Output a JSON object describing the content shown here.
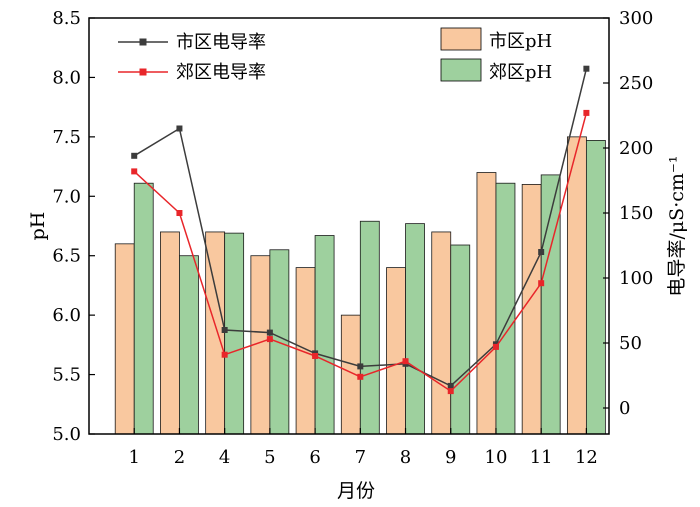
{
  "chart_data": {
    "type": "bar",
    "categories": [
      "1",
      "2",
      "4",
      "5",
      "6",
      "7",
      "8",
      "9",
      "10",
      "11",
      "12"
    ],
    "xlabel": "月份",
    "ylabel": "pH",
    "y2label": "电导率/μS·cm⁻¹",
    "ylim": [
      5.0,
      8.5
    ],
    "y2lim": [
      -20,
      300
    ],
    "yticks": [
      "5.0",
      "5.5",
      "6.0",
      "6.5",
      "7.0",
      "7.5",
      "8.0",
      "8.5"
    ],
    "y2ticks": [
      "0",
      "50",
      "100",
      "150",
      "200",
      "250",
      "300"
    ],
    "bar_series": [
      {
        "name": "市区pH",
        "color": "#f9c89f",
        "values": [
          6.6,
          6.7,
          6.7,
          6.5,
          6.4,
          6.0,
          6.4,
          6.7,
          7.2,
          7.1,
          7.5
        ]
      },
      {
        "name": "郊区pH",
        "color": "#9ed09e",
        "values": [
          7.11,
          6.5,
          6.69,
          6.55,
          6.67,
          6.79,
          6.77,
          6.59,
          7.11,
          7.18,
          7.47
        ]
      }
    ],
    "line_series": [
      {
        "name": "市区电导率",
        "color": "#3c3c3c",
        "marker": "square",
        "values": [
          194,
          215,
          60,
          58,
          42,
          32,
          34,
          17,
          49,
          120,
          261
        ]
      },
      {
        "name": "郊区电导率",
        "color": "#e8262a",
        "marker": "square",
        "values": [
          182,
          150,
          41,
          53,
          40,
          24,
          36,
          13,
          47,
          96,
          227
        ]
      }
    ],
    "legend": {
      "lines_position": "top-left",
      "bars_position": "top-right"
    },
    "grid": false
  }
}
